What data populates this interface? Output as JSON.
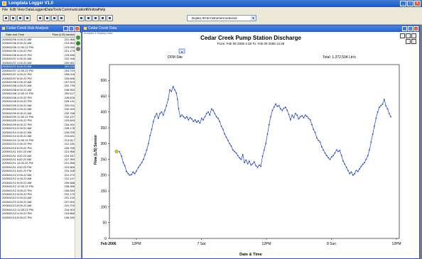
{
  "app": {
    "title": "Longdata Logger V1.0"
  },
  "menu": [
    "File",
    "Edit",
    "View",
    "DataLoggers",
    "DataTools",
    "Communication",
    "Window",
    "Help"
  ],
  "toolbar": {
    "dropdown": "Duplex 60 B Instrument selected"
  },
  "list_window": {
    "title": "Cedar Creek Disk Analysis",
    "columns": [
      "Date and Time",
      "Flow (L/S) sensor"
    ],
    "rows": [
      [
        "2005/02/06 4:00.22 AM",
        "231.966"
      ],
      [
        "2005/02/06 8:00.22 AM",
        "219.864"
      ],
      [
        "2005/02/06 12:00.22 PM",
        "223.090"
      ],
      [
        "2005/02/06 4:00.22 PM",
        "221.175"
      ],
      [
        "2005/02/06 8:00.22 PM",
        "225.456"
      ],
      [
        "2005/02/07 0:00.22 AM",
        "222.346"
      ],
      [
        "2005/02/07 4:00.22 AM",
        "200.951"
      ],
      [
        "2005/02/07 8:00.22 AM",
        "203.211"
      ],
      [
        "2005/02/07 12:00.22 PM",
        "203.713"
      ],
      [
        "2005/02/07 4:00.22 PM",
        "206.018"
      ],
      [
        "2005/02/07 8:00.22 PM",
        "205.896"
      ],
      [
        "2005/02/08 0:00.22 AM",
        "207.523"
      ],
      [
        "2005/02/08 4:00.22 AM",
        "202.739"
      ],
      [
        "2005/02/08 8:00.22 AM",
        "196.900"
      ],
      [
        "2005/02/08 12:00.22 PM",
        "209.117"
      ],
      [
        "2005/02/08 4:00.22 PM",
        "245.626"
      ],
      [
        "2005/02/08 8:00.22 PM",
        "226.141"
      ],
      [
        "2005/02/09 0:00.22 AM",
        "225.011"
      ],
      [
        "2005/02/09 4:00.22 AM",
        "232.940"
      ],
      [
        "2005/02/09 8:00.22 AM",
        "232.768"
      ],
      [
        "2005/02/09 12:00.22 PM",
        "232.157"
      ],
      [
        "2005/02/09 4:00.22 PM",
        "229.840"
      ],
      [
        "2005/02/09 8:00.22 PM",
        "234.491"
      ],
      [
        "2005/02/10 0:00.22 AM",
        "228.176"
      ],
      [
        "2005/02/10 4:00.22 AM",
        "226.039"
      ],
      [
        "2005/02/10 8:00.22 AM",
        "215.641"
      ],
      [
        "2005/02/10 12:00.22 PM",
        "213.517"
      ],
      [
        "2005/02/10 4:00.22 PM",
        "212.181"
      ],
      [
        "2005/02/10 8:00.22 PM",
        "226.765"
      ],
      [
        "2005/02/11 0:00.22 AM",
        "221.966"
      ],
      [
        "2005/02/11 4:00.22 AM",
        "224.187"
      ],
      [
        "2005/02/11 8:00.22 AM",
        "227.390"
      ],
      [
        "2005/02/11 12:00.22 PM",
        "221.966"
      ],
      [
        "2005/02/11 4:00.22 PM",
        "219.865"
      ],
      [
        "2005/02/11 8:00.22 PM",
        "216.168"
      ],
      [
        "2005/02/12 0:00.22 AM",
        "212.270"
      ],
      [
        "2005/02/12 4:00.22 AM",
        "212.147"
      ],
      [
        "2005/02/12 8:00.22 AM",
        "209.588"
      ],
      [
        "2005/02/12 12:00.22 PM",
        "208.956"
      ],
      [
        "2005/02/12 4:00.22 PM",
        "206.833"
      ],
      [
        "2005/02/12 8:00.22 PM",
        "202.175"
      ],
      [
        "2005/02/13 0:00.22 AM",
        "201.140"
      ],
      [
        "2005/02/13 4:00.22 AM",
        "207.900"
      ],
      [
        "2005/02/13 8:00.22 AM",
        "210.700"
      ],
      [
        "2005/02/13 12:00.22 PM",
        "216.903"
      ],
      [
        "2005/02/13 4:00.22 PM",
        "219.866"
      ],
      [
        "2005/02/13 8:00.22 PM",
        "196.530"
      ]
    ],
    "selected_row": 7
  },
  "chart_window": {
    "title": "Cedar Creek Data",
    "subheader": "Analysis & Display Data"
  },
  "chart_data": {
    "type": "line",
    "title": "Cedar Creek Pump Station Discharge",
    "subtitle": "From: Feb 06 2005 4:28 To: Feb 09 2006 12:28",
    "series": [
      {
        "name": "DFM Site",
        "color": "#1b3fd0"
      }
    ],
    "annotation": "Total: 1,372,504 Ltr/s",
    "xlabel": "Date & Time",
    "ylabel": "Flow (L/S) Sensor",
    "ylim": [
      0,
      550
    ],
    "yticks": [
      0,
      50,
      100,
      150,
      200,
      250,
      300,
      350,
      400,
      450,
      500
    ],
    "xticks": [
      "Feb 2006",
      "12PM",
      "7 Sat",
      "12PM",
      "8 Sun",
      "12PM"
    ],
    "xlim": [
      0,
      100
    ],
    "points": [
      [
        0,
        275
      ],
      [
        0.8,
        260
      ],
      [
        1.4,
        240
      ],
      [
        2,
        230
      ],
      [
        2.6,
        212
      ],
      [
        3.2,
        205
      ],
      [
        3.8,
        200
      ],
      [
        4.4,
        202
      ],
      [
        5,
        210
      ],
      [
        5.6,
        205
      ],
      [
        6.2,
        213
      ],
      [
        7,
        225
      ],
      [
        7.6,
        232
      ],
      [
        8.2,
        240
      ],
      [
        8.8,
        250
      ],
      [
        9.4,
        265
      ],
      [
        10,
        280
      ],
      [
        10.6,
        300
      ],
      [
        11.2,
        325
      ],
      [
        11.8,
        345
      ],
      [
        12.4,
        370
      ],
      [
        13,
        385
      ],
      [
        13.6,
        395
      ],
      [
        14.2,
        380
      ],
      [
        14.8,
        395
      ],
      [
        15.4,
        400
      ],
      [
        16,
        390
      ],
      [
        16.6,
        405
      ],
      [
        17.2,
        420
      ],
      [
        17.8,
        440
      ],
      [
        18.4,
        470
      ],
      [
        19,
        465
      ],
      [
        19.6,
        480
      ],
      [
        20.2,
        470
      ],
      [
        20.8,
        460
      ],
      [
        21.2,
        440
      ],
      [
        21.6,
        410
      ],
      [
        22.2,
        385
      ],
      [
        22.8,
        390
      ],
      [
        23.4,
        385
      ],
      [
        24,
        380
      ],
      [
        24.6,
        385
      ],
      [
        25.2,
        375
      ],
      [
        25.8,
        382
      ],
      [
        26.4,
        378
      ],
      [
        27,
        370
      ],
      [
        27.6,
        375
      ],
      [
        28.2,
        368
      ],
      [
        28.8,
        372
      ],
      [
        29.4,
        365
      ],
      [
        30,
        380
      ],
      [
        30.6,
        375
      ],
      [
        31.2,
        385
      ],
      [
        31.8,
        395
      ],
      [
        32.4,
        400
      ],
      [
        33,
        390
      ],
      [
        33.6,
        410
      ],
      [
        34.2,
        405
      ],
      [
        34.8,
        395
      ],
      [
        35.4,
        385
      ],
      [
        36,
        380
      ],
      [
        36.6,
        370
      ],
      [
        37.2,
        355
      ],
      [
        37.8,
        345
      ],
      [
        38.4,
        330
      ],
      [
        39,
        320
      ],
      [
        39.6,
        310
      ],
      [
        40.2,
        300
      ],
      [
        40.8,
        292
      ],
      [
        41.4,
        280
      ],
      [
        42,
        275
      ],
      [
        42.6,
        270
      ],
      [
        43.2,
        262
      ],
      [
        43.8,
        255
      ],
      [
        44.4,
        250
      ],
      [
        45,
        265
      ],
      [
        45.6,
        240
      ],
      [
        46.2,
        248
      ],
      [
        46.8,
        236
      ],
      [
        47.4,
        244
      ],
      [
        48,
        232
      ],
      [
        48.6,
        236
      ],
      [
        49.2,
        242
      ],
      [
        49.8,
        230
      ],
      [
        50.4,
        225
      ],
      [
        51,
        232
      ],
      [
        51.6,
        228
      ],
      [
        52.2,
        260
      ],
      [
        52.8,
        280
      ],
      [
        53.4,
        300
      ],
      [
        54,
        330
      ],
      [
        54.6,
        360
      ],
      [
        55.2,
        385
      ],
      [
        55.8,
        405
      ],
      [
        56.4,
        415
      ],
      [
        57,
        425
      ],
      [
        57.6,
        418
      ],
      [
        58.2,
        420
      ],
      [
        58.8,
        410
      ],
      [
        59.4,
        405
      ],
      [
        60,
        412
      ],
      [
        60.6,
        415
      ],
      [
        61.2,
        405
      ],
      [
        61.8,
        392
      ],
      [
        62.4,
        375
      ],
      [
        63,
        390
      ],
      [
        63.6,
        382
      ],
      [
        64.2,
        395
      ],
      [
        64.8,
        390
      ],
      [
        65.4,
        378
      ],
      [
        66,
        385
      ],
      [
        66.6,
        388
      ],
      [
        67.2,
        382
      ],
      [
        67.8,
        390
      ],
      [
        68.4,
        386
      ],
      [
        69,
        380
      ],
      [
        69.6,
        375
      ],
      [
        70.2,
        360
      ],
      [
        70.8,
        345
      ],
      [
        71.4,
        335
      ],
      [
        72,
        318
      ],
      [
        72.6,
        310
      ],
      [
        73.2,
        305
      ],
      [
        73.8,
        290
      ],
      [
        74.4,
        280
      ],
      [
        75,
        270
      ],
      [
        75.6,
        262
      ],
      [
        76.2,
        255
      ],
      [
        76.8,
        250
      ],
      [
        77.4,
        258
      ],
      [
        78,
        262
      ],
      [
        78.6,
        270
      ],
      [
        79.2,
        280
      ],
      [
        79.8,
        275
      ],
      [
        80.4,
        278
      ],
      [
        81,
        262
      ],
      [
        81.6,
        245
      ],
      [
        82.2,
        235
      ],
      [
        82.8,
        225
      ],
      [
        83.4,
        215
      ],
      [
        84,
        205
      ],
      [
        84.6,
        210
      ],
      [
        85.2,
        200
      ],
      [
        85.8,
        205
      ],
      [
        86.4,
        215
      ],
      [
        87,
        212
      ],
      [
        87.6,
        220
      ],
      [
        88.2,
        228
      ],
      [
        88.8,
        235
      ],
      [
        89.4,
        240
      ],
      [
        90,
        250
      ],
      [
        90.6,
        262
      ],
      [
        91.2,
        280
      ],
      [
        91.8,
        305
      ],
      [
        92.4,
        330
      ],
      [
        93,
        355
      ],
      [
        93.6,
        380
      ],
      [
        94.2,
        400
      ],
      [
        94.8,
        415
      ],
      [
        95.4,
        420
      ],
      [
        96,
        425
      ],
      [
        96.6,
        440
      ],
      [
        97.2,
        420
      ],
      [
        97.8,
        410
      ],
      [
        98.4,
        395
      ],
      [
        99,
        385
      ]
    ]
  }
}
